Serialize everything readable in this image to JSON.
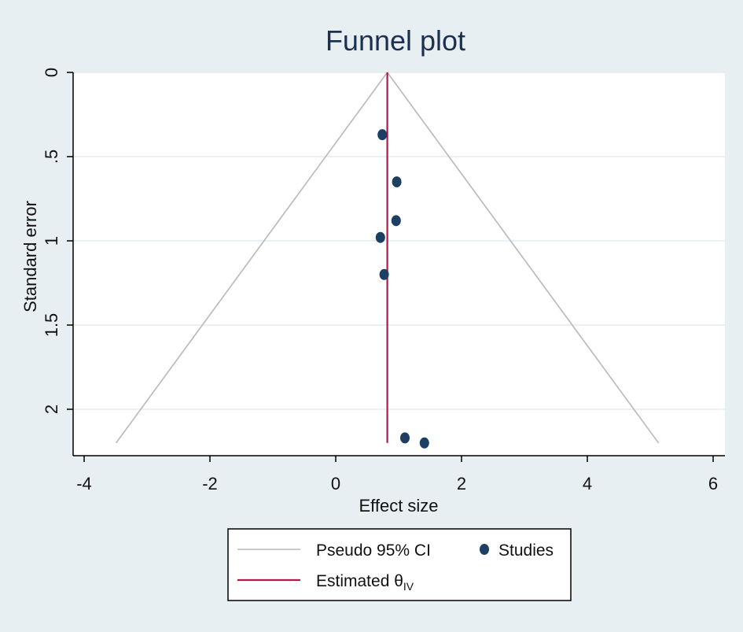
{
  "chart_data": {
    "type": "scatter",
    "title": "Funnel plot",
    "xlabel": "Effect size",
    "ylabel": "Standard error",
    "xlim": [
      -4,
      6
    ],
    "ylim": [
      0,
      2.2
    ],
    "y_inverted": true,
    "grid": true,
    "x_ticks": [
      {
        "value": -4,
        "label": "-4"
      },
      {
        "value": -2,
        "label": "-2"
      },
      {
        "value": 0,
        "label": "0"
      },
      {
        "value": 2,
        "label": "2"
      },
      {
        "value": 4,
        "label": "4"
      },
      {
        "value": 6,
        "label": "6"
      }
    ],
    "y_ticks": [
      {
        "value": 0,
        "label": "0"
      },
      {
        "value": 0.5,
        "label": ".5"
      },
      {
        "value": 1,
        "label": "1"
      },
      {
        "value": 1.5,
        "label": "1.5"
      },
      {
        "value": 2,
        "label": "2"
      }
    ],
    "estimate": 0.82,
    "pseudo_ci_max_se": 2.2,
    "studies": [
      {
        "x": 0.74,
        "y": 0.37
      },
      {
        "x": 0.97,
        "y": 0.65
      },
      {
        "x": 0.96,
        "y": 0.88
      },
      {
        "x": 0.71,
        "y": 0.98
      },
      {
        "x": 0.77,
        "y": 1.2
      },
      {
        "x": 1.1,
        "y": 2.17
      },
      {
        "x": 1.41,
        "y": 2.2
      }
    ],
    "legend": {
      "placement": "bottom",
      "ci_label": "Pseudo 95% CI",
      "studies_label": "Studies",
      "estimate_label": "Estimated θ",
      "estimate_subscript": "IV"
    },
    "colors": {
      "background": "#e8eff2",
      "plot_area": "#ffffff",
      "grid": "#e3ebef",
      "ci_lines": "#b8b8b8",
      "estimate_line": "#b5174a",
      "points": "#1c3f63",
      "title": "#1c3150"
    }
  }
}
